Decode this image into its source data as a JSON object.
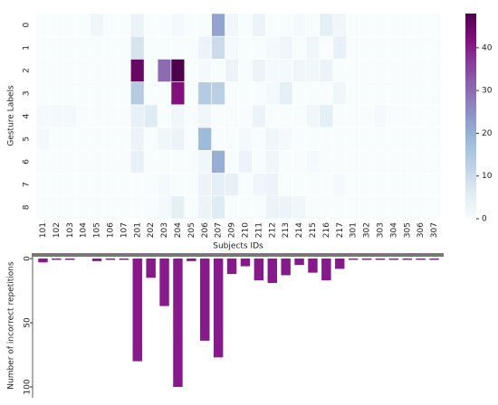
{
  "chart_data": [
    {
      "type": "heatmap",
      "x_label": "Subjects IDs",
      "y_label": "Gesture Labels",
      "categories": [
        "101",
        "102",
        "103",
        "104",
        "105",
        "106",
        "107",
        "201",
        "202",
        "203",
        "204",
        "205",
        "206",
        "207",
        "209",
        "210",
        "211",
        "212",
        "213",
        "214",
        "215",
        "216",
        "217",
        "301",
        "302",
        "303",
        "304",
        "305",
        "306",
        "307"
      ],
      "rows": [
        "0",
        "1",
        "2",
        "3",
        "4",
        "5",
        "6",
        "7",
        "8"
      ],
      "z": [
        [
          0,
          0,
          0,
          0,
          2,
          0,
          0,
          3,
          0,
          0,
          1,
          0,
          0,
          22,
          2,
          0,
          3,
          0,
          0,
          1,
          0,
          5,
          2,
          0,
          0,
          0,
          0,
          0,
          0,
          0
        ],
        [
          0,
          0,
          0,
          0,
          0,
          0,
          0,
          8,
          0,
          0,
          0,
          0,
          3,
          10,
          1,
          0,
          0,
          1,
          2,
          0,
          2,
          0,
          4,
          0,
          0,
          0,
          0,
          0,
          0,
          0
        ],
        [
          0,
          0,
          0,
          0,
          0,
          0,
          0,
          45,
          0,
          30,
          48,
          0,
          1,
          0,
          3,
          0,
          3,
          1,
          1,
          2,
          2,
          3,
          0,
          0,
          0,
          0,
          0,
          0,
          0,
          0
        ],
        [
          0,
          0,
          0,
          0,
          0,
          0,
          0,
          14,
          0,
          0,
          42,
          0,
          14,
          13,
          0,
          0,
          0,
          1,
          5,
          0,
          0,
          0,
          2,
          0,
          0,
          0,
          0,
          0,
          0,
          0
        ],
        [
          1,
          1,
          1,
          0,
          0,
          0,
          0,
          4,
          6,
          0,
          2,
          0,
          2,
          0,
          0,
          0,
          3,
          0,
          0,
          0,
          2,
          5,
          0,
          0,
          0,
          1,
          0,
          0,
          0,
          0
        ],
        [
          1,
          0,
          0,
          0,
          0,
          0,
          0,
          3,
          0,
          2,
          3,
          0,
          18,
          0,
          0,
          1,
          0,
          2,
          1,
          0,
          0,
          0,
          0,
          0,
          0,
          0,
          0,
          0,
          0,
          0
        ],
        [
          0,
          0,
          0,
          0,
          0,
          0,
          0,
          4,
          0,
          0,
          0,
          0,
          2,
          20,
          0,
          3,
          0,
          2,
          0,
          0,
          1,
          0,
          0,
          0,
          0,
          0,
          0,
          0,
          0,
          0
        ],
        [
          0,
          0,
          0,
          0,
          0,
          0,
          0,
          0,
          0,
          1,
          0,
          0,
          3,
          5,
          4,
          0,
          2,
          3,
          0,
          0,
          0,
          0,
          1,
          0,
          0,
          0,
          0,
          0,
          0,
          0
        ],
        [
          0,
          0,
          0,
          0,
          0,
          0,
          0,
          0,
          0,
          1,
          5,
          0,
          3,
          6,
          0,
          0,
          0,
          3,
          3,
          2,
          0,
          0,
          0,
          0,
          0,
          0,
          0,
          0,
          0,
          0
        ]
      ],
      "zlim": [
        0,
        48
      ],
      "zticks": [
        0,
        10,
        20,
        30,
        40
      ],
      "colorscale": [
        "#f7fcfd",
        "#e0ecf4",
        "#bfd3e6",
        "#9ebcda",
        "#8c96c6",
        "#8c6bb1",
        "#88419d",
        "#810f7c",
        "#4d004b"
      ]
    },
    {
      "type": "bar",
      "y_label": "Number of incorrect repetitions",
      "values": [
        3,
        1,
        1,
        0,
        2,
        1,
        1,
        80,
        15,
        37,
        100,
        2,
        64,
        77,
        12,
        6,
        17,
        19,
        13,
        5,
        11,
        17,
        8,
        1,
        1,
        1,
        1,
        1,
        1,
        1
      ],
      "color": "#861a8a",
      "ylim": [
        0,
        100
      ],
      "yticks": [
        0,
        50,
        100
      ],
      "inverted": true
    }
  ]
}
